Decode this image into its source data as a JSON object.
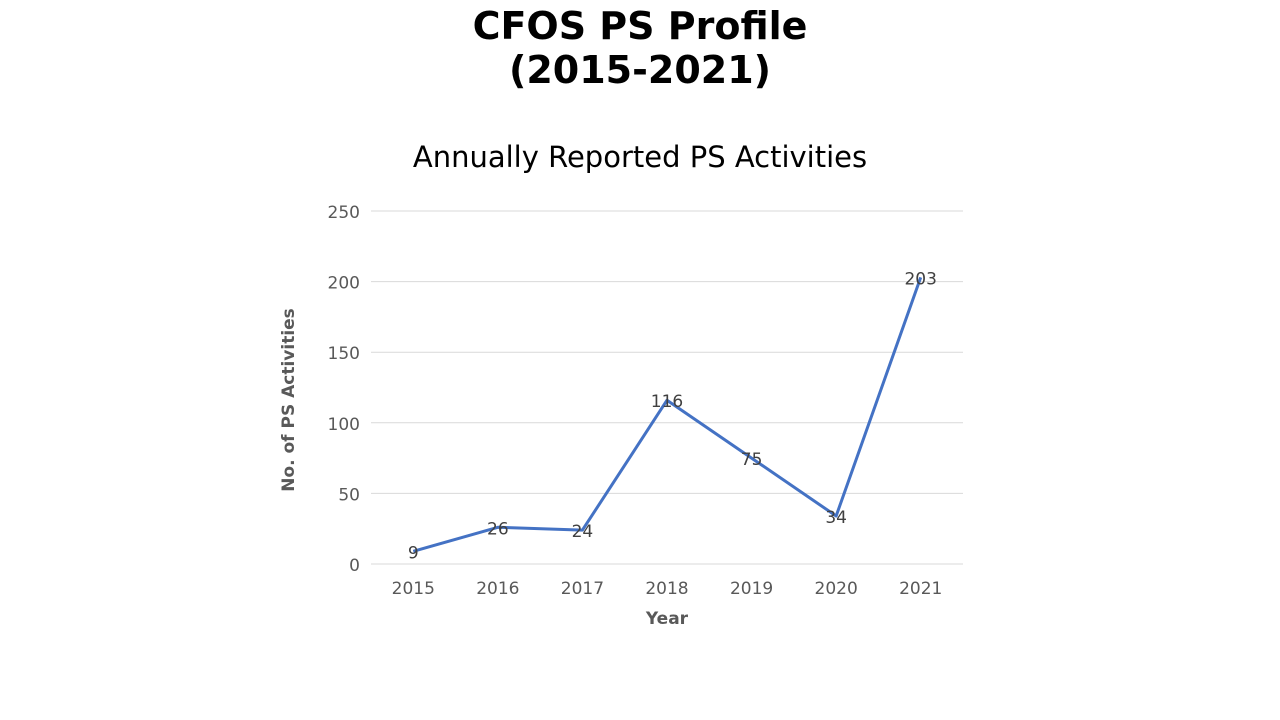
{
  "slide": {
    "title_line1": "CFOS PS Profile",
    "title_line2": "(2015-2021)"
  },
  "chart_data": {
    "type": "line",
    "title": "Annually Reported PS Activities",
    "xlabel": "Year",
    "ylabel": "No. of PS Activities",
    "categories": [
      "2015",
      "2016",
      "2017",
      "2018",
      "2019",
      "2020",
      "2021"
    ],
    "series": [
      {
        "values": [
          9,
          26,
          24,
          116,
          75,
          34,
          203
        ],
        "color": "#4472C4"
      }
    ],
    "ylim": [
      0,
      250
    ],
    "yticks": [
      0,
      50,
      100,
      150,
      200,
      250
    ],
    "grid": true,
    "data_labels": true,
    "legend": "none"
  }
}
